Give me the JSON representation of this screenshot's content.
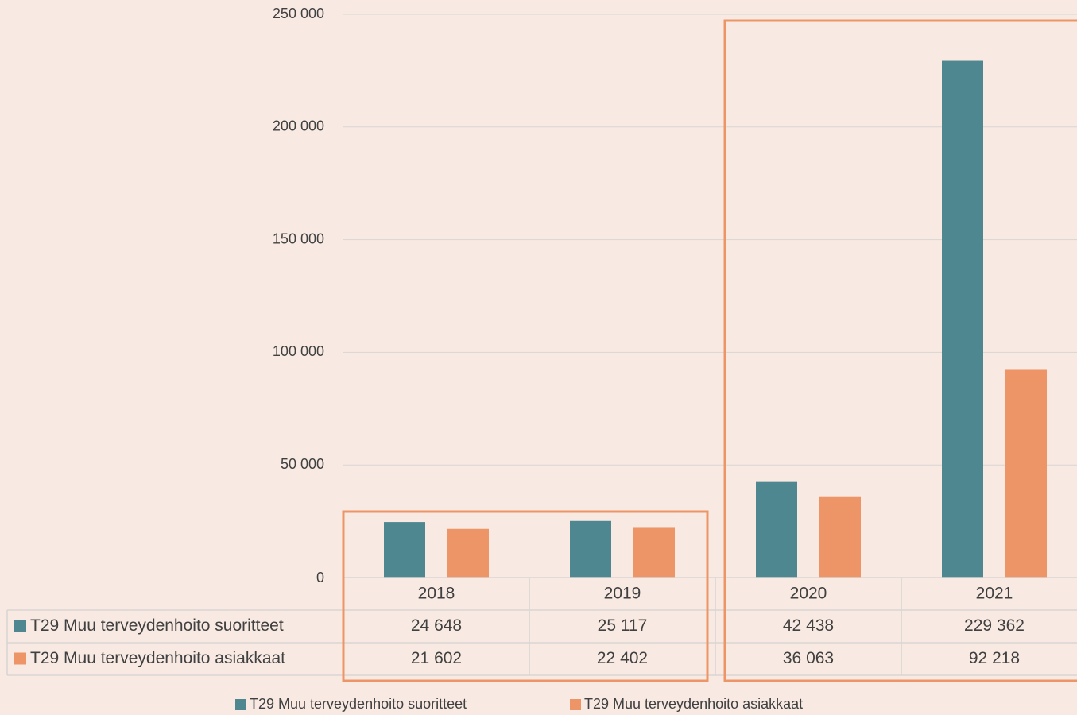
{
  "colors": {
    "background": "#f8eae3",
    "series1": "#4e8790",
    "series2": "#ed9566",
    "grid": "#d9d5d2",
    "highlight_box": "#ed9566",
    "text": "#404040"
  },
  "chart_data": {
    "type": "bar",
    "title": "",
    "xlabel": "",
    "ylabel": "",
    "categories": [
      "2018",
      "2019",
      "2020",
      "2021"
    ],
    "ylim": [
      0,
      250000
    ],
    "yticks": [
      0,
      50000,
      100000,
      150000,
      200000,
      250000
    ],
    "ytick_labels": [
      "0",
      "50 000",
      "100 000",
      "150 000",
      "200 000",
      "250 000"
    ],
    "grid": true,
    "legend_position": "bottom",
    "series": [
      {
        "name": "T29 Muu terveydenhoito suoritteet",
        "values": [
          24648,
          25117,
          42438,
          229362
        ],
        "value_labels": [
          "24 648",
          "25 117",
          "42 438",
          "229 362"
        ]
      },
      {
        "name": "T29 Muu terveydenhoito asiakkaat",
        "values": [
          21602,
          22402,
          36063,
          92218
        ],
        "value_labels": [
          "21 602",
          "22 402",
          "36 063",
          "92 218"
        ]
      }
    ],
    "annotations": [
      {
        "type": "highlight-box",
        "categories": [
          "2018",
          "2019"
        ]
      },
      {
        "type": "highlight-box",
        "categories": [
          "2020",
          "2021"
        ]
      }
    ]
  }
}
